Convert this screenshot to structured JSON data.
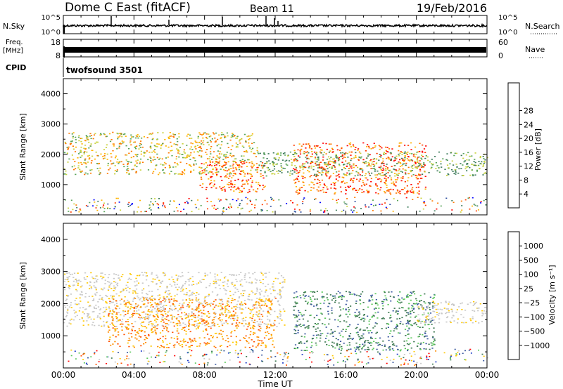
{
  "header": {
    "station": "Dome C East (fitACF)",
    "beam": "Beam 11",
    "date": "19/Feb/2016"
  },
  "noise_panel": {
    "left_label": "N.Sky",
    "right_label": "N.Search",
    "tick_high": "10^5",
    "tick_low": "10^0",
    "right_tick_high": "10^5",
    "right_tick_low": "10^0"
  },
  "freq_panel": {
    "left_label_line1": "Freq.",
    "left_label_line2": "[MHz]",
    "left_tick_high": "18",
    "left_tick_low": "8",
    "right_label": "Nave",
    "right_tick_high": "60",
    "right_tick_low": "0"
  },
  "cpid_panel": {
    "label": "CPID",
    "value": "twofsound 3501"
  },
  "chart_data": [
    {
      "type": "heatmap",
      "name": "power",
      "ylabel": "Slant Range [km]",
      "xlabel": "Time UT",
      "xlim_hours": [
        0,
        24
      ],
      "ylim": [
        0,
        4500
      ],
      "yticks": [
        1000,
        2000,
        3000,
        4000
      ],
      "colorbar": {
        "label": "Power [dB]",
        "ticks": [
          "4",
          "8",
          "12",
          "16",
          "20",
          "24",
          "28"
        ],
        "range": [
          0,
          30
        ],
        "colors": [
          "#0000ff",
          "#2f4f9f",
          "#3c7a5a",
          "#5aa55a",
          "#c8d23c",
          "#ffb400",
          "#ff7800",
          "#ff3c00",
          "#ff0000"
        ]
      },
      "regions": [
        {
          "t0": 0.0,
          "t1": 11.0,
          "r0": 1350,
          "r1": 2750,
          "level": "mid"
        },
        {
          "t0": 7.7,
          "t1": 11.4,
          "r0": 750,
          "r1": 1800,
          "level": "high"
        },
        {
          "t0": 13.0,
          "t1": 20.5,
          "r0": 700,
          "r1": 2400,
          "level": "high"
        },
        {
          "t0": 11.0,
          "t1": 24.0,
          "r0": 1300,
          "r1": 2100,
          "level": "low"
        }
      ]
    },
    {
      "type": "heatmap",
      "name": "velocity",
      "ylabel": "Slant Range [km]",
      "xlabel": "Time UT",
      "xlim_hours": [
        0,
        24
      ],
      "ylim": [
        0,
        4500
      ],
      "yticks": [
        1000,
        2000,
        3000,
        4000
      ],
      "colorbar": {
        "label": "Velocity [m s⁻¹]",
        "ticks": [
          "1000",
          "500",
          "100",
          "25",
          "−25",
          "−100",
          "−500",
          "−1000"
        ],
        "colors": [
          "#1e3cc8",
          "#3c5aa0",
          "#3c7850",
          "#5ac85a",
          "#c8c8c8",
          "#ffc800",
          "#ff8c00",
          "#ff5000",
          "#ff0000"
        ]
      },
      "regions": [
        {
          "t0": 0.0,
          "t1": 12.5,
          "r0": 1300,
          "r1": 3000,
          "level": "zero"
        },
        {
          "t0": 2.5,
          "t1": 12.0,
          "r0": 650,
          "r1": 2200,
          "level": "negative"
        },
        {
          "t0": 13.0,
          "t1": 21.0,
          "r0": 550,
          "r1": 2400,
          "level": "positive"
        },
        {
          "t0": 20.0,
          "t1": 24.0,
          "r0": 1400,
          "r1": 2100,
          "level": "zero"
        }
      ]
    }
  ],
  "time_axis": {
    "ticks": [
      "00:00",
      "04:00",
      "08:00",
      "12:00",
      "16:00",
      "20:00",
      "00:00"
    ],
    "label": "Time UT"
  }
}
